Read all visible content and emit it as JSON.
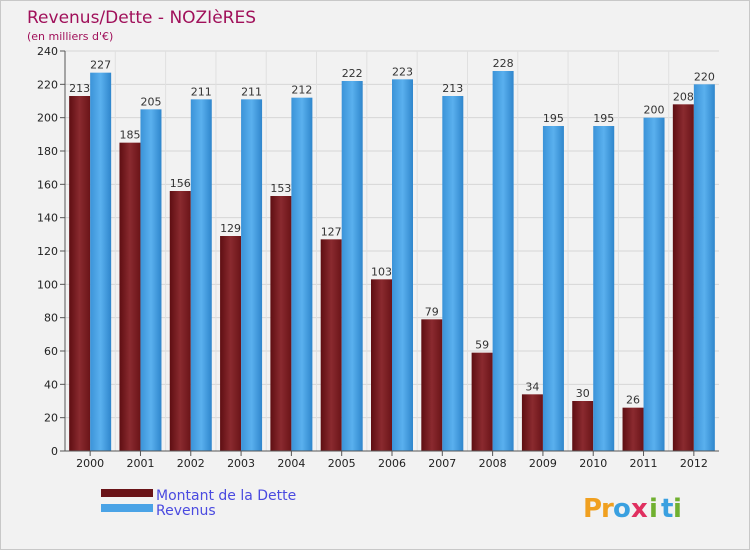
{
  "chart_data": {
    "type": "bar",
    "title": "Revenus/Dette - NOZIèRES",
    "subtitle": "(en milliers d'€)",
    "categories": [
      "2000",
      "2001",
      "2002",
      "2003",
      "2004",
      "2005",
      "2006",
      "2007",
      "2008",
      "2009",
      "2010",
      "2011",
      "2012"
    ],
    "series": [
      {
        "name": "Montant de la Dette",
        "color": "#7a1d22",
        "values": [
          213,
          185,
          156,
          129,
          153,
          127,
          103,
          79,
          59,
          34,
          30,
          26,
          208
        ]
      },
      {
        "name": "Revenus",
        "color": "#4aa3e6",
        "values": [
          227,
          205,
          211,
          211,
          212,
          222,
          223,
          213,
          228,
          195,
          195,
          200,
          220
        ]
      }
    ],
    "ylim": [
      0,
      240
    ],
    "yticks": [
      0,
      20,
      40,
      60,
      80,
      100,
      120,
      140,
      160,
      180,
      200,
      220,
      240
    ],
    "grid": true,
    "legend_position": "bottom-left"
  },
  "logo": {
    "letters": [
      "P",
      "r",
      "o",
      "x",
      "i",
      "t",
      "i"
    ],
    "colors": [
      "#f0a020",
      "#f0a020",
      "#3aa0e0",
      "#e03060",
      "#70b030",
      "#3aa0e0",
      "#70b030"
    ]
  }
}
